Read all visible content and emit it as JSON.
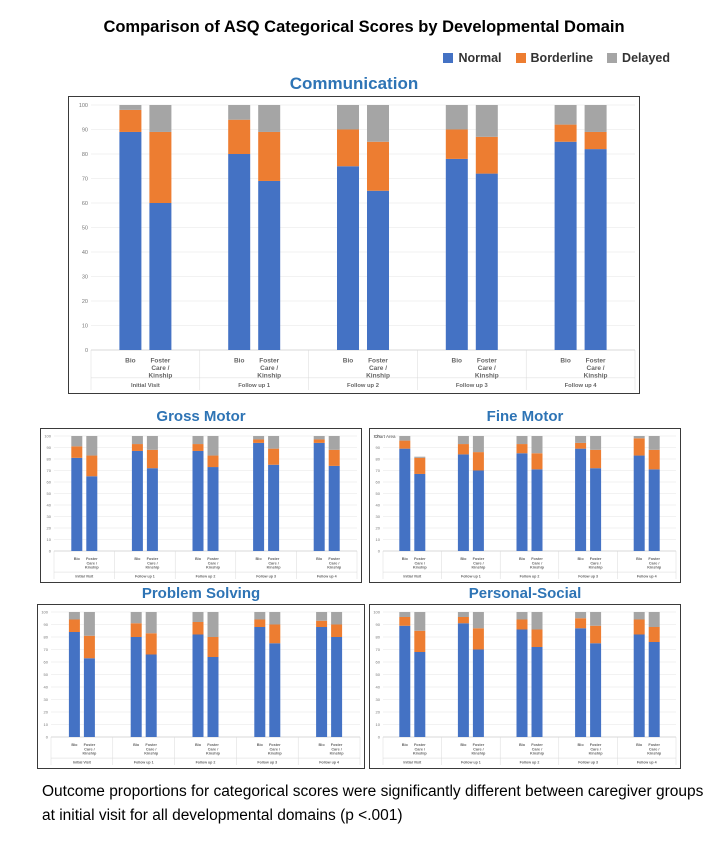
{
  "title": "Comparison of ASQ Categorical Scores by Developmental Domain",
  "legend": [
    {
      "label": "Normal",
      "color": "#4472c4"
    },
    {
      "label": "Borderline",
      "color": "#ed7d31"
    },
    {
      "label": "Delayed",
      "color": "#a5a5a5"
    }
  ],
  "footnote": "Outcome proportions for categorical scores were significantly different between caregiver groups at initial visit for all developmental domains (p <.001)",
  "chart_data": [
    {
      "type": "bar",
      "stacked": true,
      "title": "Communication",
      "visits": [
        "Initial Visit",
        "Follow up 1",
        "Follow up 2",
        "Follow up 3",
        "Follow up 4"
      ],
      "groups": [
        "Bio",
        "Foster Care / Kinship"
      ],
      "ylim": [
        0,
        100
      ],
      "yticks": [
        0,
        10,
        20,
        30,
        40,
        50,
        60,
        70,
        80,
        90,
        100
      ],
      "series": [
        {
          "name": "Normal",
          "values": [
            89,
            60,
            80,
            69,
            75,
            65,
            78,
            72,
            85,
            82
          ]
        },
        {
          "name": "Borderline",
          "values": [
            9,
            29,
            14,
            20,
            15,
            20,
            12,
            15,
            7,
            7
          ]
        },
        {
          "name": "Delayed",
          "values": [
            2,
            11,
            6,
            11,
            10,
            15,
            10,
            13,
            8,
            11
          ]
        }
      ]
    },
    {
      "type": "bar",
      "stacked": true,
      "title": "Gross Motor",
      "visits": [
        "Initial Visit",
        "Follow up 1",
        "Follow up 2",
        "Follow up 3",
        "Follow up 4"
      ],
      "groups": [
        "Bio",
        "Foster Care / Kinship"
      ],
      "ylim": [
        0,
        100
      ],
      "yticks": [
        0,
        10,
        20,
        30,
        40,
        50,
        60,
        70,
        80,
        90,
        100
      ],
      "series": [
        {
          "name": "Normal",
          "values": [
            81,
            65,
            87,
            72,
            87,
            73,
            94,
            75,
            94,
            74
          ]
        },
        {
          "name": "Borderline",
          "values": [
            10,
            18,
            6,
            16,
            6,
            10,
            3,
            14,
            3,
            14
          ]
        },
        {
          "name": "Delayed",
          "values": [
            9,
            17,
            7,
            12,
            7,
            17,
            3,
            11,
            3,
            12
          ]
        }
      ]
    },
    {
      "type": "bar",
      "stacked": true,
      "title": "Fine Motor",
      "label": "Chart Area",
      "visits": [
        "Initial Visit",
        "Follow up 1",
        "Follow up 2",
        "Follow up 3",
        "Follow up 4"
      ],
      "groups": [
        "Bio",
        "Foster Care / Kinship"
      ],
      "ylim": [
        0,
        100
      ],
      "yticks": [
        0,
        10,
        20,
        30,
        40,
        50,
        60,
        70,
        80,
        90,
        100
      ],
      "series": [
        {
          "name": "Normal",
          "values": [
            89,
            67,
            84,
            70,
            85,
            71,
            89,
            72,
            83,
            71
          ]
        },
        {
          "name": "Borderline",
          "values": [
            7,
            14,
            9,
            16,
            8,
            14,
            5,
            16,
            15,
            17
          ]
        },
        {
          "name": "Delayed",
          "values": [
            4,
            1,
            7,
            14,
            7,
            15,
            6,
            12,
            2,
            12
          ]
        }
      ]
    },
    {
      "type": "bar",
      "stacked": true,
      "title": "Problem Solving",
      "visits": [
        "Initial Visit",
        "Follow up 1",
        "Follow up 2",
        "Follow up 3",
        "Follow up 4"
      ],
      "groups": [
        "Bio",
        "Foster Care / Kinship"
      ],
      "ylim": [
        0,
        100
      ],
      "yticks": [
        0,
        10,
        20,
        30,
        40,
        50,
        60,
        70,
        80,
        90,
        100
      ],
      "series": [
        {
          "name": "Normal",
          "values": [
            84,
            63,
            80,
            66,
            82,
            64,
            88,
            75,
            88,
            80
          ]
        },
        {
          "name": "Borderline",
          "values": [
            10,
            18,
            11,
            17,
            10,
            16,
            6,
            15,
            5,
            10
          ]
        },
        {
          "name": "Delayed",
          "values": [
            6,
            19,
            9,
            17,
            8,
            20,
            6,
            10,
            7,
            10
          ]
        }
      ]
    },
    {
      "type": "bar",
      "stacked": true,
      "title": "Personal-Social",
      "visits": [
        "Initial Visit",
        "Follow up 1",
        "Follow up 2",
        "Follow up 3",
        "Follow up 4"
      ],
      "groups": [
        "Bio",
        "Foster Care / Kinship"
      ],
      "ylim": [
        0,
        100
      ],
      "yticks": [
        0,
        10,
        20,
        30,
        40,
        50,
        60,
        70,
        80,
        90,
        100
      ],
      "series": [
        {
          "name": "Normal",
          "values": [
            89,
            68,
            91,
            70,
            86,
            72,
            87,
            75,
            82,
            76
          ]
        },
        {
          "name": "Borderline",
          "values": [
            7,
            17,
            5,
            17,
            8,
            14,
            8,
            14,
            12,
            12
          ]
        },
        {
          "name": "Delayed",
          "values": [
            4,
            15,
            4,
            13,
            6,
            14,
            5,
            11,
            6,
            12
          ]
        }
      ]
    }
  ]
}
